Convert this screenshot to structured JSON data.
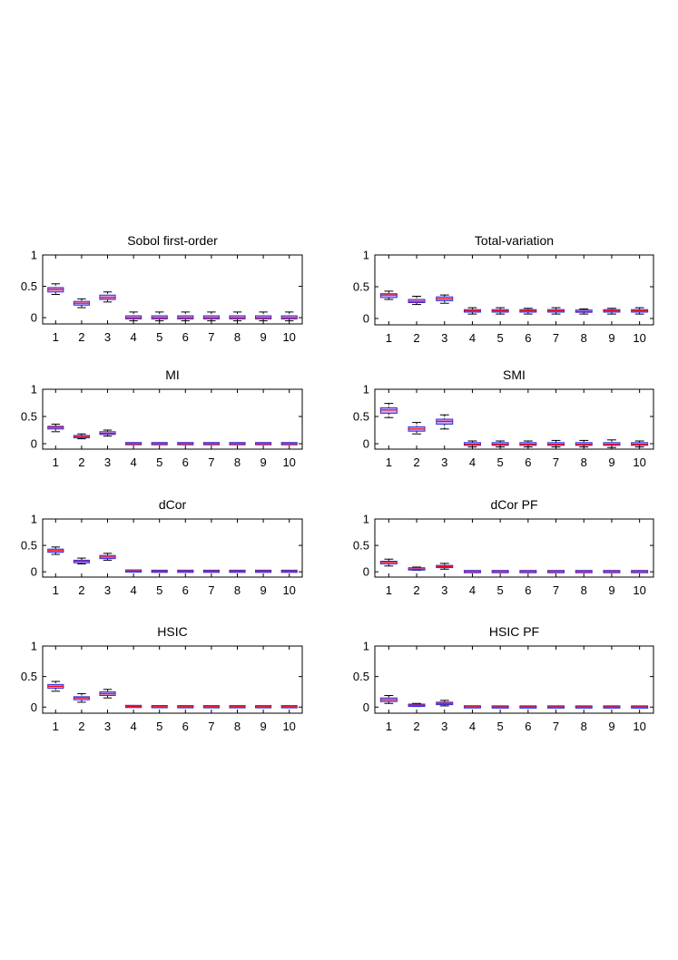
{
  "chart_data": [
    {
      "type": "boxplot",
      "title": "Sobol first-order",
      "categories": [
        "1",
        "2",
        "3",
        "4",
        "5",
        "6",
        "7",
        "8",
        "9",
        "10"
      ],
      "ylim": [
        -0.1,
        1.0
      ],
      "yticks": [
        0,
        0.5,
        1
      ],
      "ytick_labels": [
        "0",
        "0.5",
        "1"
      ],
      "grid": false,
      "boxes": [
        {
          "whisker_low": 0.37,
          "q1": 0.41,
          "median": 0.45,
          "q3": 0.48,
          "whisker_high": 0.54
        },
        {
          "whisker_low": 0.16,
          "q1": 0.2,
          "median": 0.23,
          "q3": 0.26,
          "whisker_high": 0.3
        },
        {
          "whisker_low": 0.25,
          "q1": 0.29,
          "median": 0.32,
          "q3": 0.36,
          "whisker_high": 0.41
        },
        {
          "whisker_low": -0.05,
          "q1": -0.02,
          "median": 0.0,
          "q3": 0.03,
          "whisker_high": 0.09
        },
        {
          "whisker_low": -0.05,
          "q1": -0.02,
          "median": 0.0,
          "q3": 0.03,
          "whisker_high": 0.09
        },
        {
          "whisker_low": -0.05,
          "q1": -0.02,
          "median": 0.0,
          "q3": 0.03,
          "whisker_high": 0.09
        },
        {
          "whisker_low": -0.05,
          "q1": -0.02,
          "median": 0.0,
          "q3": 0.03,
          "whisker_high": 0.09
        },
        {
          "whisker_low": -0.05,
          "q1": -0.02,
          "median": 0.0,
          "q3": 0.03,
          "whisker_high": 0.09
        },
        {
          "whisker_low": -0.05,
          "q1": -0.02,
          "median": 0.0,
          "q3": 0.03,
          "whisker_high": 0.09
        },
        {
          "whisker_low": -0.05,
          "q1": -0.02,
          "median": 0.0,
          "q3": 0.03,
          "whisker_high": 0.09
        }
      ]
    },
    {
      "type": "boxplot",
      "title": "Total-variation",
      "categories": [
        "1",
        "2",
        "3",
        "4",
        "5",
        "6",
        "7",
        "8",
        "9",
        "10"
      ],
      "ylim": [
        -0.1,
        1.0
      ],
      "yticks": [
        0,
        0.5,
        1
      ],
      "ytick_labels": [
        "0",
        "0.5",
        "1"
      ],
      "grid": false,
      "boxes": [
        {
          "whisker_low": 0.3,
          "q1": 0.33,
          "median": 0.37,
          "q3": 0.39,
          "whisker_high": 0.43
        },
        {
          "whisker_low": 0.22,
          "q1": 0.25,
          "median": 0.27,
          "q3": 0.3,
          "whisker_high": 0.35
        },
        {
          "whisker_low": 0.24,
          "q1": 0.28,
          "median": 0.31,
          "q3": 0.34,
          "whisker_high": 0.37
        },
        {
          "whisker_low": 0.07,
          "q1": 0.1,
          "median": 0.12,
          "q3": 0.14,
          "whisker_high": 0.17
        },
        {
          "whisker_low": 0.07,
          "q1": 0.1,
          "median": 0.12,
          "q3": 0.14,
          "whisker_high": 0.17
        },
        {
          "whisker_low": 0.07,
          "q1": 0.1,
          "median": 0.12,
          "q3": 0.14,
          "whisker_high": 0.16
        },
        {
          "whisker_low": 0.07,
          "q1": 0.1,
          "median": 0.12,
          "q3": 0.14,
          "whisker_high": 0.17
        },
        {
          "whisker_low": 0.07,
          "q1": 0.1,
          "median": 0.11,
          "q3": 0.13,
          "whisker_high": 0.15
        },
        {
          "whisker_low": 0.07,
          "q1": 0.1,
          "median": 0.12,
          "q3": 0.14,
          "whisker_high": 0.16
        },
        {
          "whisker_low": 0.07,
          "q1": 0.1,
          "median": 0.12,
          "q3": 0.14,
          "whisker_high": 0.17
        }
      ]
    },
    {
      "type": "boxplot",
      "title": "MI",
      "categories": [
        "1",
        "2",
        "3",
        "4",
        "5",
        "6",
        "7",
        "8",
        "9",
        "10"
      ],
      "ylim": [
        -0.1,
        1.0
      ],
      "yticks": [
        0,
        0.5,
        1
      ],
      "ytick_labels": [
        "0",
        "0.5",
        "1"
      ],
      "grid": false,
      "boxes": [
        {
          "whisker_low": 0.22,
          "q1": 0.27,
          "median": 0.3,
          "q3": 0.32,
          "whisker_high": 0.36
        },
        {
          "whisker_low": 0.09,
          "q1": 0.11,
          "median": 0.13,
          "q3": 0.15,
          "whisker_high": 0.18
        },
        {
          "whisker_low": 0.14,
          "q1": 0.17,
          "median": 0.19,
          "q3": 0.22,
          "whisker_high": 0.25
        },
        {
          "whisker_low": -0.01,
          "q1": -0.005,
          "median": 0.0,
          "q3": 0.007,
          "whisker_high": 0.015
        },
        {
          "whisker_low": -0.01,
          "q1": -0.005,
          "median": 0.0,
          "q3": 0.007,
          "whisker_high": 0.015
        },
        {
          "whisker_low": -0.01,
          "q1": -0.005,
          "median": 0.0,
          "q3": 0.007,
          "whisker_high": 0.015
        },
        {
          "whisker_low": -0.01,
          "q1": -0.005,
          "median": 0.0,
          "q3": 0.007,
          "whisker_high": 0.015
        },
        {
          "whisker_low": -0.01,
          "q1": -0.005,
          "median": 0.0,
          "q3": 0.007,
          "whisker_high": 0.015
        },
        {
          "whisker_low": -0.01,
          "q1": -0.005,
          "median": 0.0,
          "q3": 0.007,
          "whisker_high": 0.015
        },
        {
          "whisker_low": -0.01,
          "q1": -0.005,
          "median": 0.0,
          "q3": 0.007,
          "whisker_high": 0.015
        }
      ]
    },
    {
      "type": "boxplot",
      "title": "SMI",
      "categories": [
        "1",
        "2",
        "3",
        "4",
        "5",
        "6",
        "7",
        "8",
        "9",
        "10"
      ],
      "ylim": [
        -0.1,
        1.0
      ],
      "yticks": [
        0,
        0.5,
        1
      ],
      "ytick_labels": [
        "0",
        "0.5",
        "1"
      ],
      "grid": false,
      "boxes": [
        {
          "whisker_low": 0.48,
          "q1": 0.56,
          "median": 0.62,
          "q3": 0.66,
          "whisker_high": 0.74
        },
        {
          "whisker_low": 0.18,
          "q1": 0.23,
          "median": 0.27,
          "q3": 0.31,
          "whisker_high": 0.39
        },
        {
          "whisker_low": 0.27,
          "q1": 0.36,
          "median": 0.41,
          "q3": 0.45,
          "whisker_high": 0.53
        },
        {
          "whisker_low": -0.06,
          "q1": -0.03,
          "median": -0.01,
          "q3": 0.02,
          "whisker_high": 0.05
        },
        {
          "whisker_low": -0.06,
          "q1": -0.03,
          "median": -0.01,
          "q3": 0.02,
          "whisker_high": 0.05
        },
        {
          "whisker_low": -0.06,
          "q1": -0.03,
          "median": -0.01,
          "q3": 0.02,
          "whisker_high": 0.05
        },
        {
          "whisker_low": -0.06,
          "q1": -0.03,
          "median": -0.01,
          "q3": 0.02,
          "whisker_high": 0.06
        },
        {
          "whisker_low": -0.06,
          "q1": -0.03,
          "median": -0.01,
          "q3": 0.02,
          "whisker_high": 0.06
        },
        {
          "whisker_low": -0.07,
          "q1": -0.03,
          "median": -0.01,
          "q3": 0.02,
          "whisker_high": 0.07
        },
        {
          "whisker_low": -0.06,
          "q1": -0.03,
          "median": -0.01,
          "q3": 0.02,
          "whisker_high": 0.05
        }
      ]
    },
    {
      "type": "boxplot",
      "title": "dCor",
      "categories": [
        "1",
        "2",
        "3",
        "4",
        "5",
        "6",
        "7",
        "8",
        "9",
        "10"
      ],
      "ylim": [
        -0.1,
        1.0
      ],
      "yticks": [
        0,
        0.5,
        1
      ],
      "ytick_labels": [
        "0",
        "0.5",
        "1"
      ],
      "grid": false,
      "boxes": [
        {
          "whisker_low": 0.33,
          "q1": 0.37,
          "median": 0.4,
          "q3": 0.43,
          "whisker_high": 0.47
        },
        {
          "whisker_low": 0.15,
          "q1": 0.17,
          "median": 0.2,
          "q3": 0.22,
          "whisker_high": 0.26
        },
        {
          "whisker_low": 0.22,
          "q1": 0.25,
          "median": 0.28,
          "q3": 0.31,
          "whisker_high": 0.35
        },
        {
          "whisker_low": 0.01,
          "q1": 0.012,
          "median": 0.015,
          "q3": 0.018,
          "whisker_high": 0.02
        },
        {
          "whisker_low": 0.005,
          "q1": 0.008,
          "median": 0.01,
          "q3": 0.012,
          "whisker_high": 0.015
        },
        {
          "whisker_low": 0.005,
          "q1": 0.008,
          "median": 0.01,
          "q3": 0.012,
          "whisker_high": 0.015
        },
        {
          "whisker_low": 0.005,
          "q1": 0.008,
          "median": 0.01,
          "q3": 0.012,
          "whisker_high": 0.015
        },
        {
          "whisker_low": 0.005,
          "q1": 0.008,
          "median": 0.01,
          "q3": 0.012,
          "whisker_high": 0.015
        },
        {
          "whisker_low": 0.005,
          "q1": 0.008,
          "median": 0.01,
          "q3": 0.012,
          "whisker_high": 0.015
        },
        {
          "whisker_low": 0.005,
          "q1": 0.008,
          "median": 0.01,
          "q3": 0.012,
          "whisker_high": 0.015
        }
      ]
    },
    {
      "type": "boxplot",
      "title": "dCor PF",
      "categories": [
        "1",
        "2",
        "3",
        "4",
        "5",
        "6",
        "7",
        "8",
        "9",
        "10"
      ],
      "ylim": [
        -0.1,
        1.0
      ],
      "yticks": [
        0,
        0.5,
        1
      ],
      "ytick_labels": [
        "0",
        "0.5",
        "1"
      ],
      "grid": false,
      "boxes": [
        {
          "whisker_low": 0.11,
          "q1": 0.15,
          "median": 0.18,
          "q3": 0.2,
          "whisker_high": 0.24
        },
        {
          "whisker_low": 0.03,
          "q1": 0.04,
          "median": 0.05,
          "q3": 0.07,
          "whisker_high": 0.09
        },
        {
          "whisker_low": 0.05,
          "q1": 0.08,
          "median": 0.1,
          "q3": 0.12,
          "whisker_high": 0.16
        },
        {
          "whisker_low": 0.0,
          "q1": 0.002,
          "median": 0.004,
          "q3": 0.006,
          "whisker_high": 0.008
        },
        {
          "whisker_low": 0.0,
          "q1": 0.002,
          "median": 0.004,
          "q3": 0.006,
          "whisker_high": 0.008
        },
        {
          "whisker_low": 0.0,
          "q1": 0.002,
          "median": 0.004,
          "q3": 0.006,
          "whisker_high": 0.008
        },
        {
          "whisker_low": 0.0,
          "q1": 0.002,
          "median": 0.004,
          "q3": 0.006,
          "whisker_high": 0.008
        },
        {
          "whisker_low": 0.0,
          "q1": 0.002,
          "median": 0.004,
          "q3": 0.006,
          "whisker_high": 0.008
        },
        {
          "whisker_low": 0.0,
          "q1": 0.002,
          "median": 0.004,
          "q3": 0.006,
          "whisker_high": 0.008
        },
        {
          "whisker_low": 0.0,
          "q1": 0.002,
          "median": 0.004,
          "q3": 0.006,
          "whisker_high": 0.01
        }
      ]
    },
    {
      "type": "boxplot",
      "title": "HSIC",
      "categories": [
        "1",
        "2",
        "3",
        "4",
        "5",
        "6",
        "7",
        "8",
        "9",
        "10"
      ],
      "ylim": [
        -0.1,
        1.0
      ],
      "yticks": [
        0,
        0.5,
        1
      ],
      "ytick_labels": [
        "0",
        "0.5",
        "1"
      ],
      "grid": false,
      "boxes": [
        {
          "whisker_low": 0.26,
          "q1": 0.31,
          "median": 0.34,
          "q3": 0.37,
          "whisker_high": 0.42
        },
        {
          "whisker_low": 0.08,
          "q1": 0.12,
          "median": 0.15,
          "q3": 0.17,
          "whisker_high": 0.22
        },
        {
          "whisker_low": 0.15,
          "q1": 0.19,
          "median": 0.22,
          "q3": 0.25,
          "whisker_high": 0.29
        },
        {
          "whisker_low": 0.005,
          "q1": 0.008,
          "median": 0.01,
          "q3": 0.013,
          "whisker_high": 0.02
        },
        {
          "whisker_low": 0.003,
          "q1": 0.005,
          "median": 0.007,
          "q3": 0.009,
          "whisker_high": 0.012
        },
        {
          "whisker_low": 0.002,
          "q1": 0.004,
          "median": 0.006,
          "q3": 0.008,
          "whisker_high": 0.01
        },
        {
          "whisker_low": 0.002,
          "q1": 0.004,
          "median": 0.006,
          "q3": 0.008,
          "whisker_high": 0.01
        },
        {
          "whisker_low": 0.002,
          "q1": 0.004,
          "median": 0.006,
          "q3": 0.008,
          "whisker_high": 0.01
        },
        {
          "whisker_low": 0.002,
          "q1": 0.004,
          "median": 0.006,
          "q3": 0.008,
          "whisker_high": 0.01
        },
        {
          "whisker_low": 0.002,
          "q1": 0.004,
          "median": 0.006,
          "q3": 0.008,
          "whisker_high": 0.01
        }
      ]
    },
    {
      "type": "boxplot",
      "title": "HSIC PF",
      "categories": [
        "1",
        "2",
        "3",
        "4",
        "5",
        "6",
        "7",
        "8",
        "9",
        "10"
      ],
      "ylim": [
        -0.1,
        1.0
      ],
      "yticks": [
        0,
        0.5,
        1
      ],
      "ytick_labels": [
        "0",
        "0.5",
        "1"
      ],
      "grid": false,
      "boxes": [
        {
          "whisker_low": 0.06,
          "q1": 0.09,
          "median": 0.12,
          "q3": 0.15,
          "whisker_high": 0.19
        },
        {
          "whisker_low": 0.01,
          "q1": 0.02,
          "median": 0.03,
          "q3": 0.04,
          "whisker_high": 0.06
        },
        {
          "whisker_low": 0.02,
          "q1": 0.04,
          "median": 0.06,
          "q3": 0.08,
          "whisker_high": 0.11
        },
        {
          "whisker_low": 0.0,
          "q1": 0.002,
          "median": 0.004,
          "q3": 0.006,
          "whisker_high": 0.008
        },
        {
          "whisker_low": 0.0,
          "q1": 0.001,
          "median": 0.002,
          "q3": 0.003,
          "whisker_high": 0.005
        },
        {
          "whisker_low": 0.0,
          "q1": 0.001,
          "median": 0.002,
          "q3": 0.003,
          "whisker_high": 0.005
        },
        {
          "whisker_low": 0.0,
          "q1": 0.001,
          "median": 0.002,
          "q3": 0.003,
          "whisker_high": 0.005
        },
        {
          "whisker_low": 0.0,
          "q1": 0.001,
          "median": 0.002,
          "q3": 0.003,
          "whisker_high": 0.005
        },
        {
          "whisker_low": 0.0,
          "q1": 0.001,
          "median": 0.002,
          "q3": 0.003,
          "whisker_high": 0.005
        },
        {
          "whisker_low": 0.0,
          "q1": 0.001,
          "median": 0.002,
          "q3": 0.003,
          "whisker_high": 0.005
        }
      ]
    }
  ],
  "style": {
    "box_fill": "#c8a8f0",
    "box_stroke": "#2a2ae0",
    "median_color": "#ff0000",
    "whisker_color": "#000000",
    "axis_color": "#000000"
  }
}
